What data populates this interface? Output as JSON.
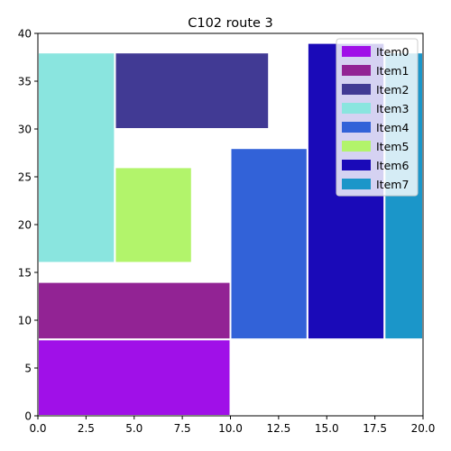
{
  "chart_data": {
    "type": "bar",
    "subtype": "rectangle-packing",
    "title": "C102 route 3",
    "xlabel": "",
    "ylabel": "",
    "xlim": [
      0,
      20
    ],
    "ylim": [
      0,
      40
    ],
    "xticks": [
      "0.0",
      "2.5",
      "5.0",
      "7.5",
      "10.0",
      "12.5",
      "15.0",
      "17.5",
      "20.0"
    ],
    "yticks": [
      "0",
      "5",
      "10",
      "15",
      "20",
      "25",
      "30",
      "35",
      "40"
    ],
    "grid": false,
    "legend_position": "top-right",
    "series": [
      {
        "name": "Item0",
        "color": "#a010e8",
        "x0": 0,
        "x1": 10,
        "y0": 0,
        "y1": 8
      },
      {
        "name": "Item1",
        "color": "#922394",
        "x0": 0,
        "x1": 10,
        "y0": 8,
        "y1": 14
      },
      {
        "name": "Item2",
        "color": "#413a94",
        "x0": 4,
        "x1": 12,
        "y0": 30,
        "y1": 38
      },
      {
        "name": "Item3",
        "color": "#8ae5df",
        "x0": 0,
        "x1": 4,
        "y0": 16,
        "y1": 38
      },
      {
        "name": "Item4",
        "color": "#3262d8",
        "x0": 10,
        "x1": 14,
        "y0": 8,
        "y1": 28
      },
      {
        "name": "Item5",
        "color": "#b2f46b",
        "x0": 4,
        "x1": 8,
        "y0": 16,
        "y1": 26
      },
      {
        "name": "Item6",
        "color": "#1a0ab8",
        "x0": 14,
        "x1": 18,
        "y0": 8,
        "y1": 39
      },
      {
        "name": "Item7",
        "color": "#1b96c9",
        "x0": 18,
        "x1": 20,
        "y0": 8,
        "y1": 38
      }
    ]
  }
}
